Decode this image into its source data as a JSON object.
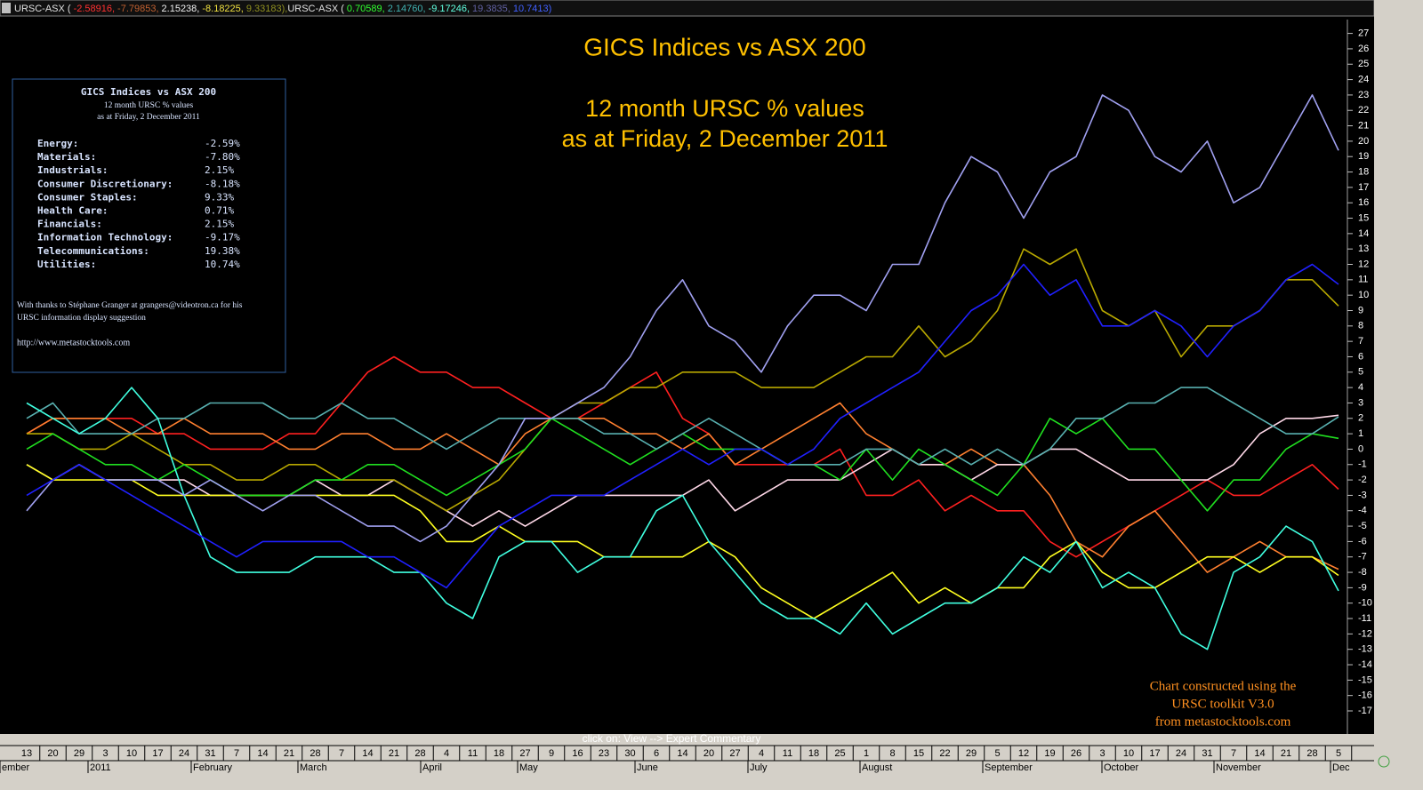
{
  "chart_data": {
    "type": "line",
    "title": "GICS Indices vs ASX 200",
    "subtitle": [
      "12 month URSC % values",
      "as at Friday, 2 December 2011"
    ],
    "annotations": [
      "Chart constructed using the",
      "URSC  toolkit V3.0",
      "from metastocktools.com"
    ],
    "footer": "click on:  View --> Expert Commentary",
    "header": [
      {
        "name": "URSC-ASX (",
        "values": [
          "-2.58916,",
          "-7.79853,",
          "2.15238,",
          "-8.18225,",
          "9.33183),"
        ],
        "colors": [
          "#ff3030",
          "#c06030",
          "#f0f0f0",
          "#f0e040",
          "#909020"
        ]
      },
      {
        "name": "URSC-ASX (",
        "values": [
          "0.70589,",
          "2.14760,",
          "-9.17246,",
          "19.3835,",
          "10.7413)"
        ],
        "colors": [
          "#30ff30",
          "#40b0b0",
          "#60ffe0",
          "#6060a0",
          "#4060ff"
        ]
      }
    ],
    "categories": [
      "13",
      "20",
      "29",
      "3",
      "10",
      "17",
      "24",
      "31",
      "7",
      "14",
      "21",
      "28",
      "7",
      "14",
      "21",
      "28",
      "4",
      "11",
      "18",
      "27",
      "9",
      "16",
      "23",
      "30",
      "6",
      "14",
      "20",
      "27",
      "4",
      "11",
      "18",
      "25",
      "1",
      "8",
      "15",
      "22",
      "29",
      "5",
      "12",
      "19",
      "26",
      "3",
      "10",
      "17",
      "24",
      "31",
      "7",
      "14",
      "21",
      "28",
      "5"
    ],
    "months": [
      "ember",
      "2011",
      "February",
      "March",
      "April",
      "May",
      "June",
      "July",
      "August",
      "September",
      "October",
      "November",
      "Dec"
    ],
    "ylim": [
      -18.5,
      27.9
    ],
    "yticks": [
      -17,
      -16,
      -15,
      -14,
      -13,
      -12,
      -11,
      -10,
      -9,
      -8,
      -7,
      -6,
      -5,
      -4,
      -3,
      -2,
      -1,
      0,
      1,
      2,
      3,
      4,
      5,
      6,
      7,
      8,
      9,
      10,
      11,
      12,
      13,
      14,
      15,
      16,
      17,
      18,
      19,
      20,
      21,
      22,
      23,
      24,
      25,
      26,
      27
    ],
    "series": [
      {
        "name": "Energy:",
        "color": "#ff2020",
        "values": [
          1,
          2,
          2,
          2,
          2,
          1,
          1,
          0,
          0,
          0,
          1,
          1,
          3,
          5,
          6,
          5,
          5,
          4,
          4,
          3,
          2,
          2,
          3,
          4,
          5,
          2,
          1,
          -1,
          -1,
          -1,
          -1,
          0,
          -3,
          -3,
          -2,
          -4,
          -3,
          -4,
          -4,
          -6,
          -7,
          -6,
          -5,
          -4,
          -3,
          -2,
          -3,
          -3,
          -2,
          -1,
          -2.6
        ]
      },
      {
        "name": "Materials:",
        "color": "#ff8030",
        "values": [
          1,
          2,
          2,
          2,
          1,
          1,
          2,
          1,
          1,
          1,
          0,
          0,
          1,
          1,
          0,
          0,
          1,
          0,
          -1,
          1,
          2,
          2,
          2,
          1,
          1,
          0,
          1,
          -1,
          0,
          1,
          2,
          3,
          1,
          0,
          -1,
          -1,
          0,
          -1,
          -1,
          -3,
          -6,
          -7,
          -5,
          -4,
          -6,
          -8,
          -7,
          -6,
          -7,
          -7,
          -7.8
        ]
      },
      {
        "name": "Industrials:",
        "color": "#ffd8e8",
        "values": [
          -1,
          -2,
          -1,
          -2,
          -2,
          -2,
          -2,
          -3,
          -3,
          -3,
          -3,
          -2,
          -3,
          -3,
          -2,
          -3,
          -4,
          -5,
          -4,
          -5,
          -4,
          -3,
          -3,
          -3,
          -3,
          -3,
          -2,
          -4,
          -3,
          -2,
          -2,
          -2,
          -1,
          0,
          -1,
          -1,
          -2,
          -1,
          -1,
          0,
          0,
          -1,
          -2,
          -2,
          -2,
          -2,
          -1,
          1,
          2,
          2,
          2.2
        ]
      },
      {
        "name": "Consumer Discretionary:",
        "color": "#ffff20",
        "values": [
          -1,
          -2,
          -2,
          -2,
          -2,
          -3,
          -3,
          -3,
          -3,
          -3,
          -3,
          -3,
          -3,
          -3,
          -3,
          -4,
          -6,
          -6,
          -5,
          -6,
          -6,
          -6,
          -7,
          -7,
          -7,
          -7,
          -6,
          -7,
          -9,
          -10,
          -11,
          -10,
          -9,
          -8,
          -10,
          -9,
          -10,
          -9,
          -9,
          -7,
          -6,
          -8,
          -9,
          -9,
          -8,
          -7,
          -7,
          -8,
          -7,
          -7,
          -8.2
        ]
      },
      {
        "name": "Consumer Staples:",
        "color": "#b8a800",
        "values": [
          1,
          1,
          0,
          0,
          1,
          0,
          -1,
          -1,
          -2,
          -2,
          -1,
          -1,
          -2,
          -2,
          -2,
          -3,
          -4,
          -3,
          -2,
          0,
          2,
          3,
          3,
          4,
          4,
          5,
          5,
          5,
          4,
          4,
          4,
          5,
          6,
          6,
          8,
          6,
          7,
          9,
          13,
          12,
          13,
          9,
          8,
          9,
          6,
          8,
          8,
          9,
          11,
          11,
          9.3
        ]
      },
      {
        "name": "Health Care:",
        "color": "#20e020",
        "values": [
          0,
          1,
          0,
          -1,
          -1,
          -2,
          -1,
          -2,
          -3,
          -3,
          -3,
          -2,
          -2,
          -1,
          -1,
          -2,
          -3,
          -2,
          -1,
          0,
          2,
          1,
          0,
          -1,
          0,
          1,
          0,
          0,
          0,
          -1,
          -1,
          -2,
          0,
          -2,
          0,
          -1,
          -2,
          -3,
          -1,
          2,
          1,
          2,
          0,
          0,
          -2,
          -4,
          -2,
          -2,
          0,
          1,
          0.7
        ]
      },
      {
        "name": "Financials:",
        "color": "#58b0b0",
        "values": [
          2,
          3,
          1,
          1,
          1,
          2,
          2,
          3,
          3,
          3,
          2,
          2,
          3,
          2,
          2,
          1,
          0,
          1,
          2,
          2,
          2,
          2,
          1,
          1,
          0,
          1,
          2,
          1,
          0,
          -1,
          -1,
          -1,
          0,
          0,
          -1,
          0,
          -1,
          0,
          -1,
          0,
          2,
          2,
          3,
          3,
          4,
          4,
          3,
          2,
          1,
          1,
          2.1
        ]
      },
      {
        "name": "Information Technology:",
        "color": "#40ffe0",
        "values": [
          3,
          2,
          1,
          2,
          4,
          2,
          -3,
          -7,
          -8,
          -8,
          -8,
          -7,
          -7,
          -7,
          -8,
          -8,
          -10,
          -11,
          -7,
          -6,
          -6,
          -8,
          -7,
          -7,
          -4,
          -3,
          -6,
          -8,
          -10,
          -11,
          -11,
          -12,
          -10,
          -12,
          -11,
          -10,
          -10,
          -9,
          -7,
          -8,
          -6,
          -9,
          -8,
          -9,
          -12,
          -13,
          -8,
          -7,
          -5,
          -6,
          -9.2
        ]
      },
      {
        "name": "Telecommunications:",
        "color": "#a0a0f0",
        "values": [
          -4,
          -2,
          -1,
          -2,
          -2,
          -2,
          -3,
          -2,
          -3,
          -4,
          -3,
          -3,
          -4,
          -5,
          -5,
          -6,
          -5,
          -3,
          -1,
          2,
          2,
          3,
          4,
          6,
          9,
          11,
          8,
          7,
          5,
          8,
          10,
          10,
          9,
          12,
          12,
          16,
          19,
          18,
          15,
          18,
          19,
          23,
          22,
          19,
          18,
          20,
          16,
          17,
          20,
          23,
          19.4
        ]
      },
      {
        "name": "Utilities:",
        "color": "#2020ff",
        "values": [
          -3,
          -2,
          -1,
          -2,
          -3,
          -4,
          -5,
          -6,
          -7,
          -6,
          -6,
          -6,
          -6,
          -7,
          -7,
          -8,
          -9,
          -7,
          -5,
          -4,
          -3,
          -3,
          -3,
          -2,
          -1,
          0,
          -1,
          0,
          0,
          -1,
          0,
          2,
          3,
          4,
          5,
          7,
          9,
          10,
          12,
          10,
          11,
          8,
          8,
          9,
          8,
          6,
          8,
          9,
          11,
          12,
          10.7
        ]
      }
    ],
    "info_box": {
      "title": "GICS Indices vs ASX 200",
      "lines": [
        "12 month URSC % values",
        "as at Friday, 2 December 2011"
      ],
      "values": [
        "-2.59%",
        "-7.80%",
        "2.15%",
        "-8.18%",
        "9.33%",
        "0.71%",
        "2.15%",
        "-9.17%",
        "19.38%",
        "10.74%"
      ],
      "notes": [
        "With thanks to Stéphane Granger at grangers@videotron.ca for his",
        "URSC information display suggestion"
      ],
      "url": "http://www.metastocktools.com"
    }
  }
}
